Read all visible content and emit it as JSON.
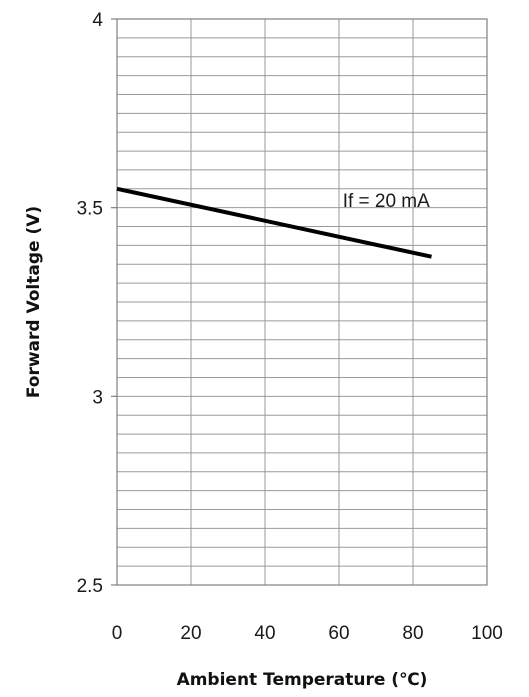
{
  "chart_data": {
    "type": "line",
    "xlabel": "Ambient Temperature (℃)",
    "ylabel": "Forward Voltage (V)",
    "xlim": [
      0,
      100
    ],
    "ylim": [
      2.5,
      4
    ],
    "x_ticks": [
      0,
      20,
      40,
      60,
      80,
      100
    ],
    "y_ticks": [
      2.5,
      3,
      3.5,
      4
    ],
    "x_tick_labels": [
      "0",
      "20",
      "40",
      "60",
      "80",
      "100"
    ],
    "y_tick_labels": [
      "2.5",
      "3",
      "3.5",
      "4"
    ],
    "x_grid_step": 20,
    "y_grid_step": 0.05,
    "grid": true,
    "series": [
      {
        "x": [
          0,
          85
        ],
        "y": [
          3.55,
          3.37
        ],
        "color": "#000000"
      }
    ],
    "annotations": [
      {
        "text": "If = 20 mA",
        "x": 61,
        "y": 3.52
      }
    ]
  }
}
